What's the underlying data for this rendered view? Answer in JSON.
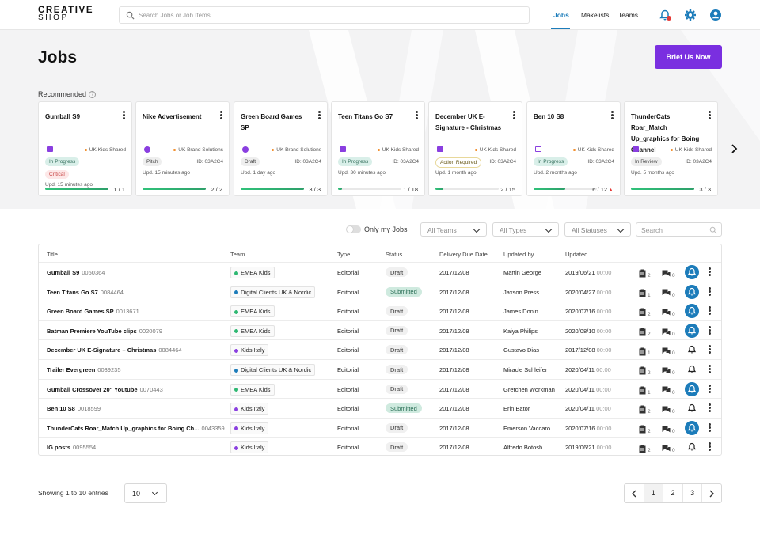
{
  "brand": {
    "line1": "CREATIVE",
    "line2": "SHOP"
  },
  "search": {
    "placeholder": "Search Jobs or Job Items"
  },
  "nav": {
    "jobs": "Jobs",
    "makelists": "Makelists",
    "teams": "Teams"
  },
  "page": {
    "title": "Jobs",
    "cta": "Brief Us Now",
    "recommended_label": "Recommended"
  },
  "colors": {
    "accent": "#7a2fe0",
    "active_blue": "#1c7cba",
    "progress_green": "#30c27a",
    "warn_red": "#e53935"
  },
  "cards": [
    {
      "title": "Gumball S9",
      "icon": "book-icon",
      "team": "UK Kids Shared",
      "status": "In Progress",
      "flag": "Critical",
      "updated": "Upd. 15 minutes ago",
      "progress": "1 / 1",
      "progress_frac": 1.0
    },
    {
      "title": "Nike Advertisement",
      "icon": "globe-icon",
      "team": "UK Brand Solutions",
      "status": "Pitch",
      "id": "ID: 03A2C4",
      "updated": "Upd. 15 minutes ago",
      "progress": "2 / 2",
      "progress_frac": 1.0
    },
    {
      "title": "Green Board Games SP",
      "icon": "globe-icon",
      "team": "UK Brand Solutions",
      "status": "Draft",
      "id": "ID: 03A2C4",
      "updated": "Upd. 1 day ago",
      "progress": "3 / 3",
      "progress_frac": 1.0
    },
    {
      "title": "Teen Titans Go S7",
      "icon": "book-icon",
      "team": "UK Kids Shared",
      "status": "In Progress",
      "id": "ID: 03A2C4",
      "updated": "Upd. 30 minutes ago",
      "progress": "1 / 18",
      "progress_frac": 0.06
    },
    {
      "title": "December UK E-Signature - Christmas",
      "icon": "book-icon",
      "team": "UK Kids Shared",
      "status": "Action Required",
      "id": "ID: 03A2C4",
      "updated": "Upd. 1 month ago",
      "progress": "2 / 15",
      "progress_frac": 0.13
    },
    {
      "title": "Ben 10 S8",
      "icon": "tv-icon",
      "team": "UK Kids Shared",
      "status": "In Progress",
      "id": "ID: 03A2C4",
      "updated": "Upd. 2 months ago",
      "progress": "6 / 12",
      "progress_frac": 0.5,
      "warning": true
    },
    {
      "title": "ThunderCats Roar_Match Up_graphics for Boing Channel",
      "icon": "book-icon",
      "team": "UK Kids Shared",
      "status": "In Review",
      "id": "ID: 03A2C4",
      "updated": "Upd. 5 months ago",
      "progress": "3 / 3",
      "progress_frac": 1.0
    }
  ],
  "filters": {
    "only_my_jobs": "Only my Jobs",
    "teams": "All Teams",
    "types": "All Types",
    "statuses": "All Statuses",
    "search_placeholder": "Search"
  },
  "table": {
    "headers": [
      "Title",
      "Team",
      "Type",
      "Status",
      "Delivery Due Date",
      "Updated by",
      "Updated"
    ],
    "rows": [
      {
        "title": "Gumball S9",
        "code": "0050364",
        "team": "EMEA Kids",
        "team_color": "#2eb872",
        "type": "Editorial",
        "status": "Draft",
        "due": "2017/12/08",
        "by": "Martin George",
        "updated": "2019/06/21",
        "time": "00:00",
        "docs": "2",
        "comments": "0",
        "bell_on": true
      },
      {
        "title": "Teen Titans Go S7",
        "code": "0084464",
        "team": "Digital Clients UK & Nordic",
        "team_color": "#1c7cba",
        "type": "Editorial",
        "status": "Submitted",
        "due": "2017/12/08",
        "by": "Jaxson Press",
        "updated": "2020/04/27",
        "time": "00:00",
        "docs": "1",
        "comments": "0",
        "bell_on": true
      },
      {
        "title": "Green Board Games SP",
        "code": "0013671",
        "team": "EMEA Kids",
        "team_color": "#2eb872",
        "type": "Editorial",
        "status": "Draft",
        "due": "2017/12/08",
        "by": "James Donin",
        "updated": "2020/07/16",
        "time": "00:00",
        "docs": "2",
        "comments": "0",
        "bell_on": true
      },
      {
        "title": "Batman Premiere YouTube clips",
        "code": "0020079",
        "team": "EMEA Kids",
        "team_color": "#2eb872",
        "type": "Editorial",
        "status": "Draft",
        "due": "2017/12/08",
        "by": "Kaiya Philips",
        "updated": "2020/08/10",
        "time": "00:00",
        "docs": "2",
        "comments": "0",
        "bell_on": true
      },
      {
        "title": "December UK E-Signature – Christmas",
        "code": "0084464",
        "team": "Kids Italy",
        "team_color": "#8a3fe0",
        "type": "Editorial",
        "status": "Draft",
        "due": "2017/12/08",
        "by": "Gustavo Dias",
        "updated": "2017/12/08",
        "time": "00:00",
        "docs": "1",
        "comments": "0",
        "bell_on": false
      },
      {
        "title": "Trailer Evergreen",
        "code": "0039235",
        "team": "Digital Clients UK & Nordic",
        "team_color": "#1c7cba",
        "type": "Editorial",
        "status": "Draft",
        "due": "2017/12/08",
        "by": "Miracle Schleifer",
        "updated": "2020/04/11",
        "time": "00:00",
        "docs": "2",
        "comments": "0",
        "bell_on": false
      },
      {
        "title": "Gumball Crossover 20\" Youtube",
        "code": "0070443",
        "team": "EMEA Kids",
        "team_color": "#2eb872",
        "type": "Editorial",
        "status": "Draft",
        "due": "2017/12/08",
        "by": "Gretchen Workman",
        "updated": "2020/04/11",
        "time": "00:00",
        "docs": "1",
        "comments": "0",
        "bell_on": true
      },
      {
        "title": "Ben 10 S8",
        "code": "0018599",
        "team": "Kids Italy",
        "team_color": "#8a3fe0",
        "type": "Editorial",
        "status": "Submitted",
        "due": "2017/12/08",
        "by": "Erin Bator",
        "updated": "2020/04/11",
        "time": "00:00",
        "docs": "2",
        "comments": "0",
        "bell_on": false
      },
      {
        "title": "ThunderCats Roar_Match Up_graphics for Boing Ch...",
        "code": "0043359",
        "team": "Kids Italy",
        "team_color": "#8a3fe0",
        "type": "Editorial",
        "status": "Draft",
        "due": "2017/12/08",
        "by": "Emerson Vaccaro",
        "updated": "2020/07/16",
        "time": "00:00",
        "docs": "2",
        "comments": "0",
        "bell_on": true
      },
      {
        "title": "IG posts",
        "code": "0095554",
        "team": "Kids Italy",
        "team_color": "#8a3fe0",
        "type": "Editorial",
        "status": "Draft",
        "due": "2017/12/08",
        "by": "Alfredo Botosh",
        "updated": "2019/06/21",
        "time": "00:00",
        "docs": "2",
        "comments": "0",
        "bell_on": false
      }
    ]
  },
  "footer": {
    "showing": "Showing 1 to 10 entries",
    "page_size": "10",
    "pages": [
      "1",
      "2",
      "3"
    ]
  }
}
